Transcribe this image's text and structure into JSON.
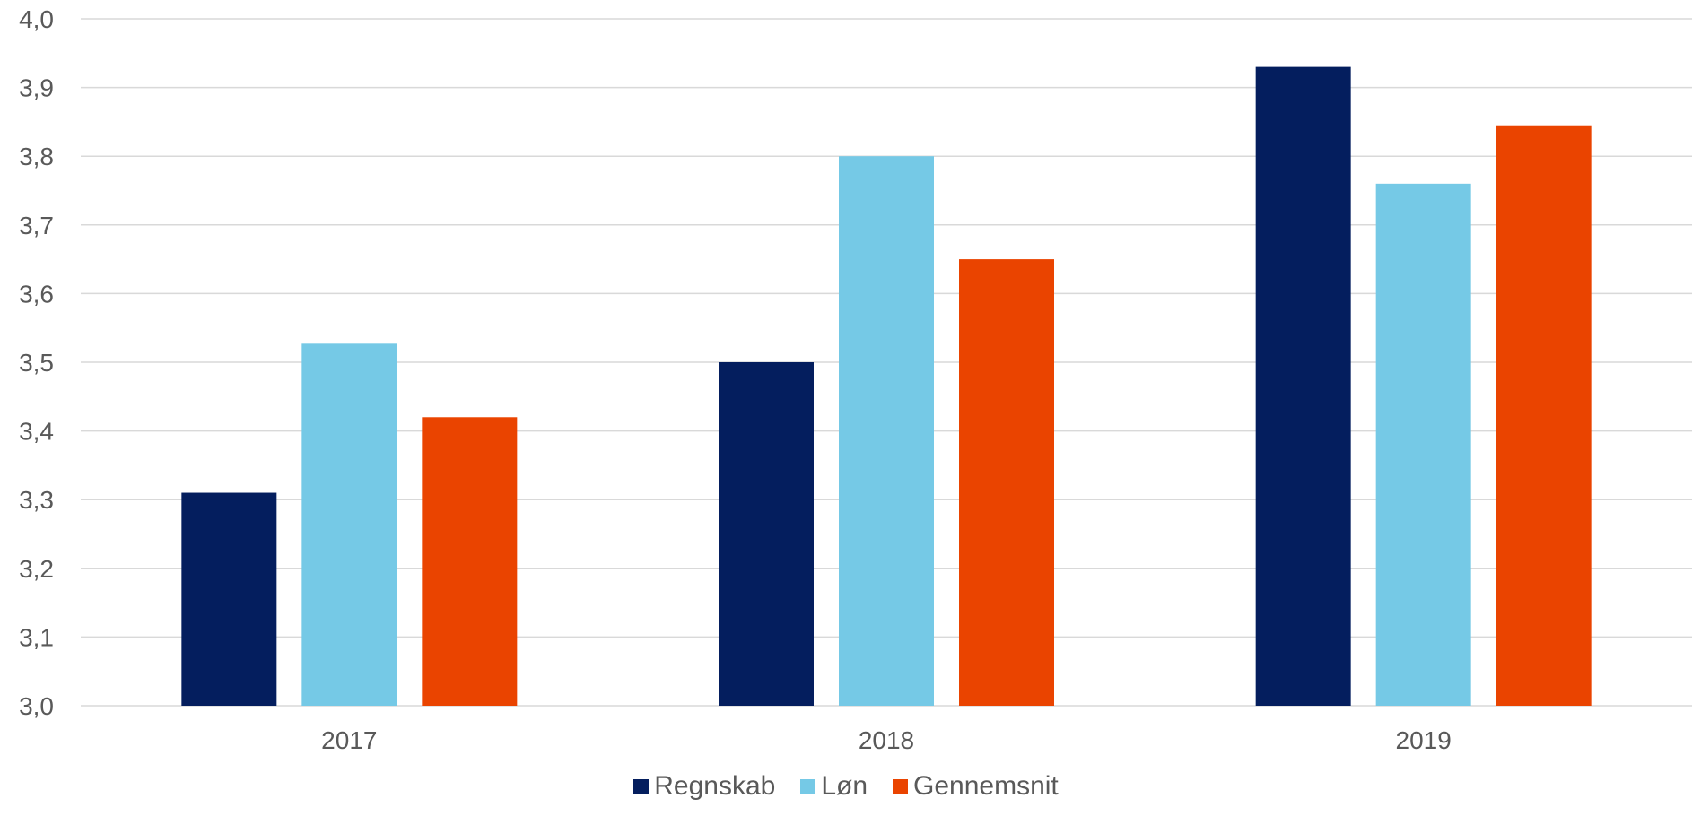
{
  "colors": {
    "background": "#ffffff",
    "grid": "#d9d9d9",
    "axis_text": "#595959"
  },
  "chart_data": {
    "type": "bar",
    "title": "",
    "xlabel": "",
    "ylabel": "",
    "categories": [
      "2017",
      "2018",
      "2019"
    ],
    "series": [
      {
        "name": "Regnskab",
        "color": "#041e5e",
        "values": [
          3.31,
          3.5,
          3.93
        ]
      },
      {
        "name": "Løn",
        "color": "#75c9e6",
        "values": [
          3.527,
          3.8,
          3.76
        ]
      },
      {
        "name": "Gennemsnit",
        "color": "#ea4400",
        "values": [
          3.42,
          3.65,
          3.845
        ]
      }
    ],
    "ylim": [
      3.0,
      4.0
    ],
    "yticks": [
      "3,0",
      "3,1",
      "3,2",
      "3,3",
      "3,4",
      "3,5",
      "3,6",
      "3,7",
      "3,8",
      "3,9",
      "4,0"
    ],
    "grid": true,
    "legend_position": "bottom-center"
  }
}
